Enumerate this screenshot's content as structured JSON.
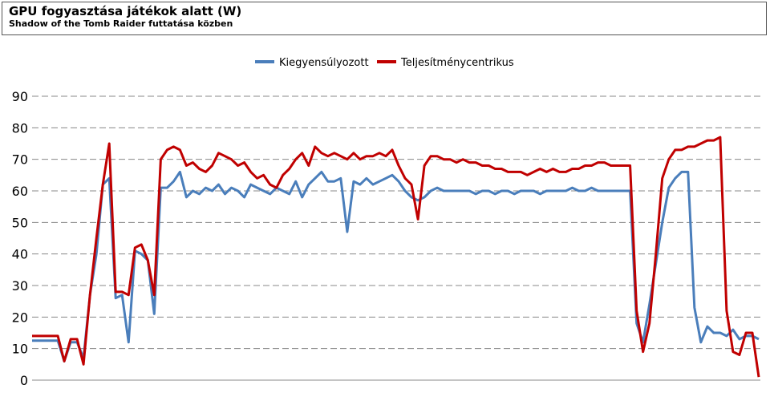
{
  "chart_data": {
    "type": "line",
    "title": "GPU fogyasztása játékok alatt (W)",
    "subtitle": "Shadow of the Tomb Raider futtatása közben",
    "ylim": [
      0,
      90
    ],
    "yticks": [
      0,
      10,
      20,
      30,
      40,
      50,
      60,
      70,
      80,
      90
    ],
    "grid": true,
    "legend": "top",
    "series": [
      {
        "name": "Kiegyensúlyozott",
        "color": "#4a7ebb",
        "values": [
          12.5,
          12.5,
          12.5,
          12.5,
          12.5,
          6,
          12,
          12,
          7,
          27,
          40,
          62,
          64,
          26,
          27,
          12,
          41,
          40,
          38,
          21,
          61,
          61,
          63,
          66,
          58,
          60,
          59,
          61,
          60,
          62,
          59,
          61,
          60,
          58,
          62,
          61,
          60,
          59,
          61,
          60,
          59,
          63,
          58,
          62,
          64,
          66,
          63,
          63,
          64,
          47,
          63,
          62,
          64,
          62,
          63,
          64,
          65,
          63,
          60,
          58,
          57,
          58,
          60,
          61,
          60,
          60,
          60,
          60,
          60,
          59,
          60,
          60,
          59,
          60,
          60,
          59,
          60,
          60,
          60,
          59,
          60,
          60,
          60,
          60,
          61,
          60,
          60,
          61,
          60,
          60,
          60,
          60,
          60,
          60,
          18,
          12,
          24,
          37,
          50,
          61,
          64,
          66,
          66,
          23,
          12,
          17,
          15,
          15,
          14,
          16,
          13,
          14,
          14,
          13
        ]
      },
      {
        "name": "Teljesítménycentrikus",
        "color": "#c00000",
        "values": [
          14,
          14,
          14,
          14,
          14,
          6,
          13,
          13,
          5,
          27,
          45,
          62,
          75,
          28,
          28,
          27,
          42,
          43,
          38,
          27,
          70,
          73,
          74,
          73,
          68,
          69,
          67,
          66,
          68,
          72,
          71,
          70,
          68,
          69,
          66,
          64,
          65,
          62,
          61,
          65,
          67,
          70,
          72,
          68,
          74,
          72,
          71,
          72,
          71,
          70,
          72,
          70,
          71,
          71,
          72,
          71,
          73,
          68,
          64,
          62,
          51,
          68,
          71,
          71,
          70,
          70,
          69,
          70,
          69,
          69,
          68,
          68,
          67,
          67,
          66,
          66,
          66,
          65,
          66,
          67,
          66,
          67,
          66,
          66,
          67,
          67,
          68,
          68,
          69,
          69,
          68,
          68,
          68,
          68,
          22,
          9,
          18,
          40,
          64,
          70,
          73,
          73,
          74,
          74,
          75,
          76,
          76,
          77,
          22,
          9,
          8,
          15,
          15,
          1
        ]
      }
    ]
  }
}
